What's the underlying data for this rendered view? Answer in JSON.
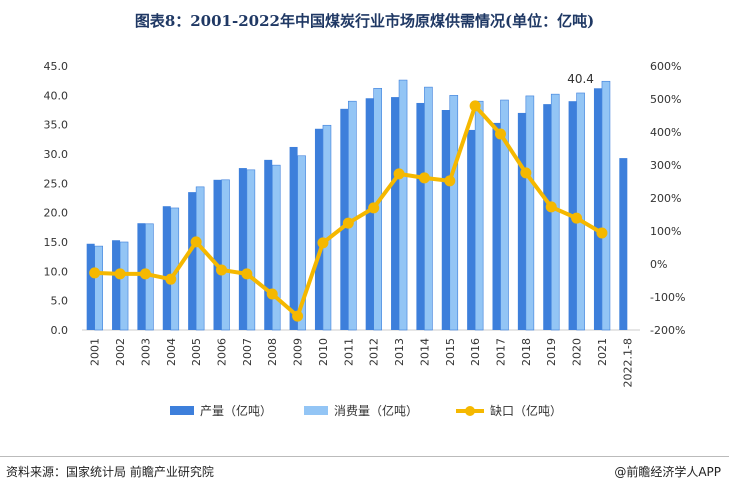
{
  "title": "图表8：2001-2022年中国煤炭行业市场原煤供需情况(单位：亿吨)",
  "footer": {
    "source": "资料来源：国家统计局 前瞻产业研究院",
    "brand": "@前瞻经济学人APP"
  },
  "chart_data": {
    "type": "bar+line",
    "categories": [
      "2001",
      "2002",
      "2003",
      "2004",
      "2005",
      "2006",
      "2007",
      "2008",
      "2009",
      "2010",
      "2011",
      "2012",
      "2013",
      "2014",
      "2015",
      "2016",
      "2017",
      "2018",
      "2019",
      "2020",
      "2021",
      "2022.1-8"
    ],
    "series": [
      {
        "name": "产量（亿吨）",
        "type": "bar",
        "axis": "left",
        "color": "#3d7fdb",
        "values": [
          14.7,
          15.3,
          18.2,
          21.1,
          23.5,
          25.6,
          27.6,
          29.0,
          31.2,
          34.3,
          37.7,
          39.5,
          39.7,
          38.7,
          37.5,
          34.1,
          35.3,
          37.0,
          38.5,
          39.0,
          41.2,
          29.3
        ]
      },
      {
        "name": "消费量（亿吨）",
        "type": "bar",
        "axis": "left",
        "color": "#93c5f5",
        "values": [
          14.3,
          15.0,
          18.1,
          20.8,
          24.4,
          25.6,
          27.3,
          28.1,
          29.7,
          34.9,
          39.0,
          41.2,
          42.6,
          41.4,
          40.0,
          39.0,
          39.2,
          39.9,
          40.2,
          40.4,
          42.4,
          null
        ]
      },
      {
        "name": "缺口（亿吨）",
        "type": "line",
        "axis": "right",
        "color": "#f5b800",
        "values": [
          -27,
          -30,
          -30,
          -46,
          67,
          -18,
          -30,
          -91,
          -158,
          64,
          124,
          170,
          273,
          261,
          252,
          479,
          394,
          276,
          173,
          139,
          94,
          null
        ]
      }
    ],
    "annotations": [
      {
        "category": "2020",
        "series": "消费量（亿吨）",
        "text": "40.4"
      }
    ],
    "left_axis": {
      "ylim": [
        0,
        45
      ],
      "ticks": [
        "0.0",
        "5.0",
        "10.0",
        "15.0",
        "20.0",
        "25.0",
        "30.0",
        "35.0",
        "40.0",
        "45.0"
      ]
    },
    "right_axis": {
      "ylim": [
        -200,
        600
      ],
      "ticks": [
        "-200%",
        "-100%",
        "0%",
        "100%",
        "200%",
        "300%",
        "400%",
        "500%",
        "600%"
      ]
    },
    "legend": "bottom",
    "grid": false
  }
}
